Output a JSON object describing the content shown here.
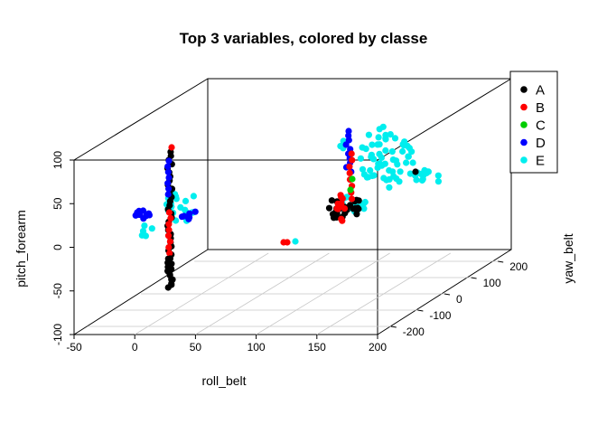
{
  "chart_data": {
    "type": "scatter",
    "title": "Top 3 variables, colored by classe",
    "xlabel": "roll_belt",
    "ylabel": "yaw_belt",
    "zlabel": "pitch_forearm",
    "xlim": [
      -50,
      200
    ],
    "ylim": [
      -250,
      250
    ],
    "zlim": [
      -100,
      100
    ],
    "x_ticks": [
      "-50",
      "0",
      "50",
      "100",
      "150",
      "200"
    ],
    "y_ticks": [
      "-200",
      "-100",
      "0",
      "100",
      "200"
    ],
    "z_ticks": [
      "-100",
      "-50",
      "0",
      "50",
      "100"
    ],
    "legend_position": "top-right",
    "series": [
      {
        "name": "A",
        "color": "#000000"
      },
      {
        "name": "B",
        "color": "#ff0000"
      },
      {
        "name": "C",
        "color": "#00cd00"
      },
      {
        "name": "D",
        "color": "#0000ff"
      },
      {
        "name": "E",
        "color": "#00eeee"
      }
    ]
  }
}
